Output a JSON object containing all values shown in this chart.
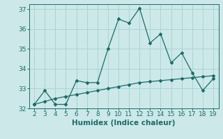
{
  "x": [
    2,
    3,
    4,
    5,
    6,
    7,
    8,
    9,
    10,
    11,
    12,
    13,
    14,
    15,
    16,
    17,
    18,
    19
  ],
  "y_main": [
    32.2,
    32.9,
    32.2,
    32.2,
    33.4,
    33.3,
    33.3,
    35.0,
    36.5,
    36.3,
    37.05,
    35.3,
    35.75,
    34.3,
    34.8,
    33.8,
    32.9,
    33.5
  ],
  "y_trend": [
    32.2,
    32.35,
    32.5,
    32.6,
    32.7,
    32.8,
    32.9,
    33.0,
    33.1,
    33.2,
    33.3,
    33.35,
    33.4,
    33.45,
    33.5,
    33.55,
    33.6,
    33.65
  ],
  "line_color": "#1a6b6b",
  "bg_color": "#cce8e8",
  "grid_color": "#aad4d4",
  "xlabel": "Humidex (Indice chaleur)",
  "ylim": [
    32.0,
    37.25
  ],
  "yticks": [
    32,
    33,
    34,
    35,
    36,
    37
  ],
  "xticks": [
    2,
    3,
    4,
    5,
    6,
    7,
    8,
    9,
    10,
    11,
    12,
    13,
    14,
    15,
    16,
    17,
    18,
    19
  ],
  "marker": "D",
  "markersize": 2.0,
  "linewidth": 0.9,
  "xlabel_fontsize": 7.5,
  "tick_fontsize": 6.5
}
